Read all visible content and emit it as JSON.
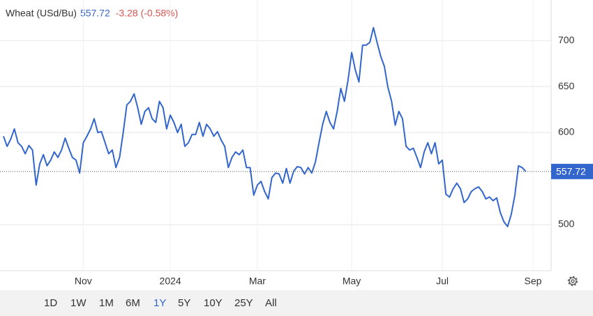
{
  "header": {
    "title": "Wheat (USd/Bu)",
    "price": "557.72",
    "change": "-3.28 (-0.58%)"
  },
  "chart_data": {
    "type": "line",
    "color": "#3366cc",
    "values": [
      596,
      585,
      593,
      604,
      589,
      585,
      577,
      586,
      581,
      543,
      566,
      576,
      564,
      570,
      579,
      573,
      581,
      594,
      583,
      573,
      570,
      556,
      589,
      596,
      604,
      615,
      600,
      601,
      589,
      577,
      581,
      562,
      573,
      600,
      630,
      634,
      642,
      627,
      609,
      623,
      627,
      615,
      611,
      634,
      627,
      604,
      619,
      611,
      600,
      609,
      585,
      589,
      598,
      598,
      611,
      596,
      609,
      604,
      596,
      601,
      592,
      585,
      562,
      573,
      579,
      576,
      581,
      562,
      562,
      532,
      543,
      547,
      536,
      528,
      551,
      556,
      555,
      545,
      561,
      545,
      558,
      563,
      562,
      555,
      562,
      556,
      568,
      589,
      609,
      623,
      611,
      604,
      623,
      648,
      634,
      657,
      687,
      668,
      655,
      695,
      695,
      698,
      714,
      698,
      683,
      672,
      649,
      634,
      608,
      623,
      615,
      585,
      581,
      583,
      573,
      562,
      579,
      589,
      577,
      589,
      566,
      570,
      533,
      530,
      539,
      545,
      539,
      524,
      528,
      536,
      539,
      541,
      536,
      528,
      530,
      526,
      529,
      513,
      503,
      498,
      511,
      532,
      564,
      562,
      557.72
    ],
    "xlim": [
      0,
      151
    ],
    "ylim": [
      450,
      744
    ],
    "yticks": [
      500,
      600,
      650,
      700
    ],
    "xticks": [
      {
        "value": 22,
        "label": "Nov"
      },
      {
        "value": 46,
        "label": "2024"
      },
      {
        "value": 70,
        "label": "Mar"
      },
      {
        "value": 96,
        "label": "May"
      },
      {
        "value": 121,
        "label": "Jul"
      },
      {
        "value": 146,
        "label": "Sep"
      }
    ],
    "grid": true
  },
  "ranges": {
    "options": [
      "1D",
      "1W",
      "1M",
      "6M",
      "1Y",
      "5Y",
      "10Y",
      "25Y",
      "All"
    ],
    "active": 4
  }
}
